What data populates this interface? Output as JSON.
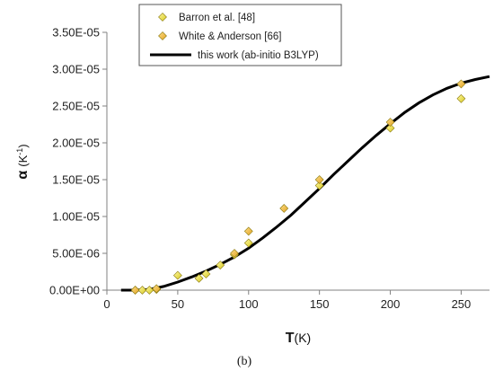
{
  "chart_data": {
    "type": "scatter",
    "xlabel_main": "T",
    "xlabel_unit": "(K)",
    "ylabel_main": "α",
    "ylabel_unit": "(K",
    "ylabel_exp": "-1",
    "ylabel_close": ")",
    "caption": "(b)",
    "xlim": [
      0,
      270
    ],
    "ylim": [
      0,
      3.5e-05
    ],
    "x_ticks": [
      "0",
      "50",
      "100",
      "150",
      "200",
      "250"
    ],
    "y_ticks": [
      "0.00E+00",
      "5.00E-06",
      "1.00E-05",
      "1.50E-05",
      "2.00E-05",
      "2.50E-05",
      "3.00E-05",
      "3.50E-05"
    ],
    "legend_position": "top-center",
    "series": [
      {
        "name": "Barron et al. [48]",
        "kind": "marker",
        "color": "#e8e23a",
        "points": [
          [
            20,
            0.0
          ],
          [
            25,
            0.0
          ],
          [
            30,
            0.0
          ],
          [
            35,
            1e-07
          ],
          [
            50,
            2e-06
          ],
          [
            65,
            1.6e-06
          ],
          [
            70,
            2.2e-06
          ],
          [
            80,
            3.4e-06
          ],
          [
            90,
            4.8e-06
          ],
          [
            100,
            6.4e-06
          ],
          [
            150,
            1.42e-05
          ],
          [
            200,
            2.2e-05
          ],
          [
            250,
            2.6e-05
          ]
        ]
      },
      {
        "name": "White & Anderson [66]",
        "kind": "marker",
        "color": "#f2b632",
        "points": [
          [
            20,
            0.0
          ],
          [
            35,
            2e-07
          ],
          [
            90,
            5e-06
          ],
          [
            100,
            8e-06
          ],
          [
            125,
            1.11e-05
          ],
          [
            150,
            1.5e-05
          ],
          [
            200,
            2.28e-05
          ],
          [
            250,
            2.8e-05
          ]
        ]
      },
      {
        "name": "this work (ab-initio B3LYP)",
        "kind": "line",
        "color": "#000000",
        "points": [
          [
            10,
            0.0
          ],
          [
            20,
            0.0
          ],
          [
            30,
            1e-07
          ],
          [
            40,
            5e-07
          ],
          [
            50,
            1.1e-06
          ],
          [
            60,
            1.8e-06
          ],
          [
            70,
            2.6e-06
          ],
          [
            80,
            3.5e-06
          ],
          [
            90,
            4.5e-06
          ],
          [
            100,
            5.7e-06
          ],
          [
            110,
            7.1e-06
          ],
          [
            120,
            8.6e-06
          ],
          [
            130,
            1.02e-05
          ],
          [
            140,
            1.2e-05
          ],
          [
            150,
            1.38e-05
          ],
          [
            160,
            1.57e-05
          ],
          [
            170,
            1.75e-05
          ],
          [
            180,
            1.93e-05
          ],
          [
            190,
            2.1e-05
          ],
          [
            200,
            2.26e-05
          ],
          [
            210,
            2.41e-05
          ],
          [
            220,
            2.54e-05
          ],
          [
            230,
            2.65e-05
          ],
          [
            240,
            2.74e-05
          ],
          [
            250,
            2.81e-05
          ],
          [
            260,
            2.86e-05
          ],
          [
            270,
            2.9e-05
          ]
        ]
      }
    ]
  }
}
